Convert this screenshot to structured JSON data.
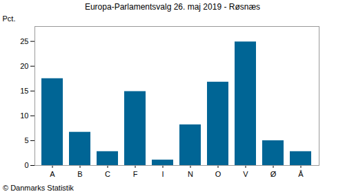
{
  "chart_data": {
    "type": "bar",
    "title": "Europa-Parlamentsvalg 26. maj 2019 - Røsnæs",
    "caption": "© Danmarks Statistik",
    "y_label": "Pct.",
    "categories": [
      "A",
      "B",
      "C",
      "F",
      "I",
      "N",
      "O",
      "V",
      "Ø",
      "Å"
    ],
    "values": [
      17.5,
      6.7,
      2.8,
      14.9,
      1.1,
      8.2,
      16.8,
      24.9,
      5.0,
      2.8
    ],
    "color": "#006595",
    "ylim": [
      0,
      28
    ],
    "yticks": [
      0,
      5,
      10,
      15,
      20,
      25
    ],
    "grid": false
  }
}
